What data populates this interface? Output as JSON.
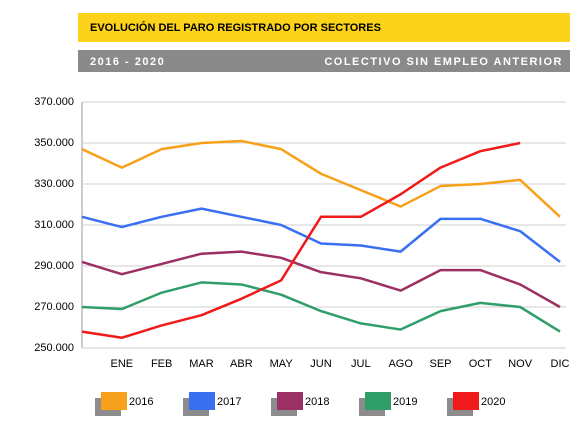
{
  "chart_data": {
    "type": "line",
    "title": "EVOLUCIÓN DEL PARO REGISTRADO POR SECTORES",
    "subtitle": "2016 - 2020",
    "annotation": "COLECTIVO SIN EMPLEO ANTERIOR",
    "categories": [
      null,
      "ENE",
      "FEB",
      "MAR",
      "ABR",
      "MAY",
      "JUN",
      "JUL",
      "AGO",
      "SEP",
      "OCT",
      "NOV",
      "DIC"
    ],
    "series": [
      {
        "name": "2016",
        "color": "#f7a11a",
        "values": [
          347000,
          338000,
          347000,
          350000,
          351000,
          347000,
          335000,
          327000,
          319000,
          329000,
          330000,
          332000,
          314000
        ]
      },
      {
        "name": "2017",
        "color": "#3b6ff2",
        "values": [
          314000,
          309000,
          314000,
          318000,
          314000,
          310000,
          301000,
          300000,
          297000,
          313000,
          313000,
          307000,
          292000
        ]
      },
      {
        "name": "2018",
        "color": "#9c2f63",
        "values": [
          292000,
          286000,
          291000,
          296000,
          297000,
          294000,
          287000,
          284000,
          278000,
          288000,
          288000,
          281000,
          270000
        ]
      },
      {
        "name": "2019",
        "color": "#2f9e69",
        "values": [
          270000,
          269000,
          277000,
          282000,
          281000,
          276000,
          268000,
          262000,
          259000,
          268000,
          272000,
          270000,
          258000
        ]
      },
      {
        "name": "2020",
        "color": "#f01a1a",
        "values": [
          258000,
          255000,
          261000,
          266000,
          274000,
          283000,
          314000,
          314000,
          325000,
          338000,
          346000,
          350000,
          null
        ]
      }
    ],
    "ylim": [
      250000,
      370000
    ],
    "yticks": [
      {
        "value": 250000,
        "label": "250.000"
      },
      {
        "value": 270000,
        "label": "270.000"
      },
      {
        "value": 290000,
        "label": "290.000"
      },
      {
        "value": 310000,
        "label": "310.000"
      },
      {
        "value": 330000,
        "label": "330.000"
      },
      {
        "value": 350000,
        "label": "350.000"
      },
      {
        "value": 370000,
        "label": "370.000"
      }
    ],
    "grid": true
  }
}
